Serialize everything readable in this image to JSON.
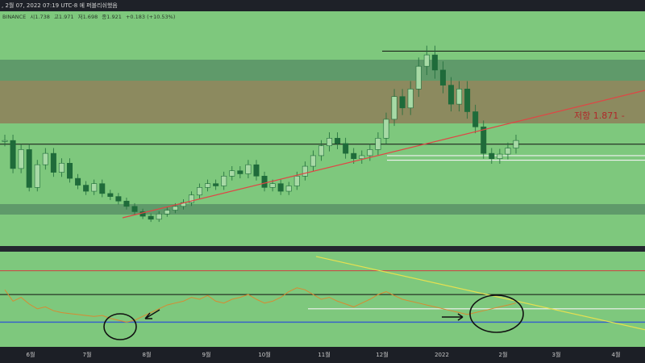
{
  "header": {
    "title": ", 2월 07, 2022 07:19 UTC-8 에 퍼블리쉬했음"
  },
  "ohlc": {
    "exchange": "BINANCE",
    "open": "시1.738",
    "high": "고1.971",
    "low": "저1.698",
    "close": "종1.921",
    "change": "+0.183 (+10.53%)"
  },
  "annotations": {
    "resistance": "저항 1.871 -"
  },
  "colors": {
    "panel_bg": "#7ec87d",
    "zone_upper": "#5f9a6a",
    "zone_brown": "#8c8a5f",
    "bull": "#1f6b3a",
    "bear": "#1f6b3a",
    "trend": "#e04545",
    "rsi": "#d78a32",
    "rsi_trend": "#e6e050",
    "rsi_low": "#3a63c8"
  },
  "chart_data": {
    "type": "candlestick",
    "x_ticks": [
      "6월",
      "7월",
      "8월",
      "9월",
      "10월",
      "11월",
      "12월",
      "2022",
      "2월",
      "3월",
      "4월"
    ],
    "price": {
      "y_labels": [],
      "horizontal_lines": [
        {
          "name": "top",
          "value": 3.1
        },
        {
          "name": "resistance",
          "value": 1.871
        },
        {
          "name": "support_1",
          "value": 1.72
        },
        {
          "name": "support_2",
          "value": 1.66
        }
      ],
      "closes": [
        1.92,
        1.55,
        1.8,
        1.3,
        1.6,
        1.75,
        1.5,
        1.62,
        1.42,
        1.33,
        1.25,
        1.35,
        1.22,
        1.18,
        1.12,
        1.05,
        0.98,
        0.92,
        0.88,
        0.95,
        1.0,
        1.05,
        1.1,
        1.2,
        1.3,
        1.35,
        1.32,
        1.45,
        1.52,
        1.48,
        1.6,
        1.45,
        1.3,
        1.35,
        1.25,
        1.32,
        1.45,
        1.58,
        1.72,
        1.85,
        1.95,
        1.88,
        1.75,
        1.68,
        1.72,
        1.8,
        1.95,
        2.2,
        2.5,
        2.35,
        2.6,
        2.9,
        3.05,
        2.85,
        2.65,
        2.4,
        2.6,
        2.3,
        2.1,
        1.75,
        1.68,
        1.74,
        1.82,
        1.92
      ]
    },
    "rsi": {
      "levels": [
        {
          "name": "upper",
          "value": 70
        },
        {
          "name": "mid",
          "value": 50
        },
        {
          "name": "lower",
          "value": 30
        }
      ],
      "values": [
        60,
        48,
        52,
        45,
        40,
        42,
        38,
        36,
        35,
        34,
        33,
        32,
        33,
        30,
        28,
        26,
        28,
        32,
        36,
        40,
        44,
        46,
        48,
        52,
        50,
        54,
        48,
        46,
        50,
        52,
        55,
        50,
        46,
        48,
        52,
        58,
        62,
        60,
        55,
        50,
        52,
        48,
        45,
        42,
        46,
        50,
        55,
        58,
        54,
        50,
        48,
        46,
        44,
        42,
        40,
        38,
        36,
        34,
        36,
        38,
        40,
        42,
        44,
        46
      ]
    }
  }
}
